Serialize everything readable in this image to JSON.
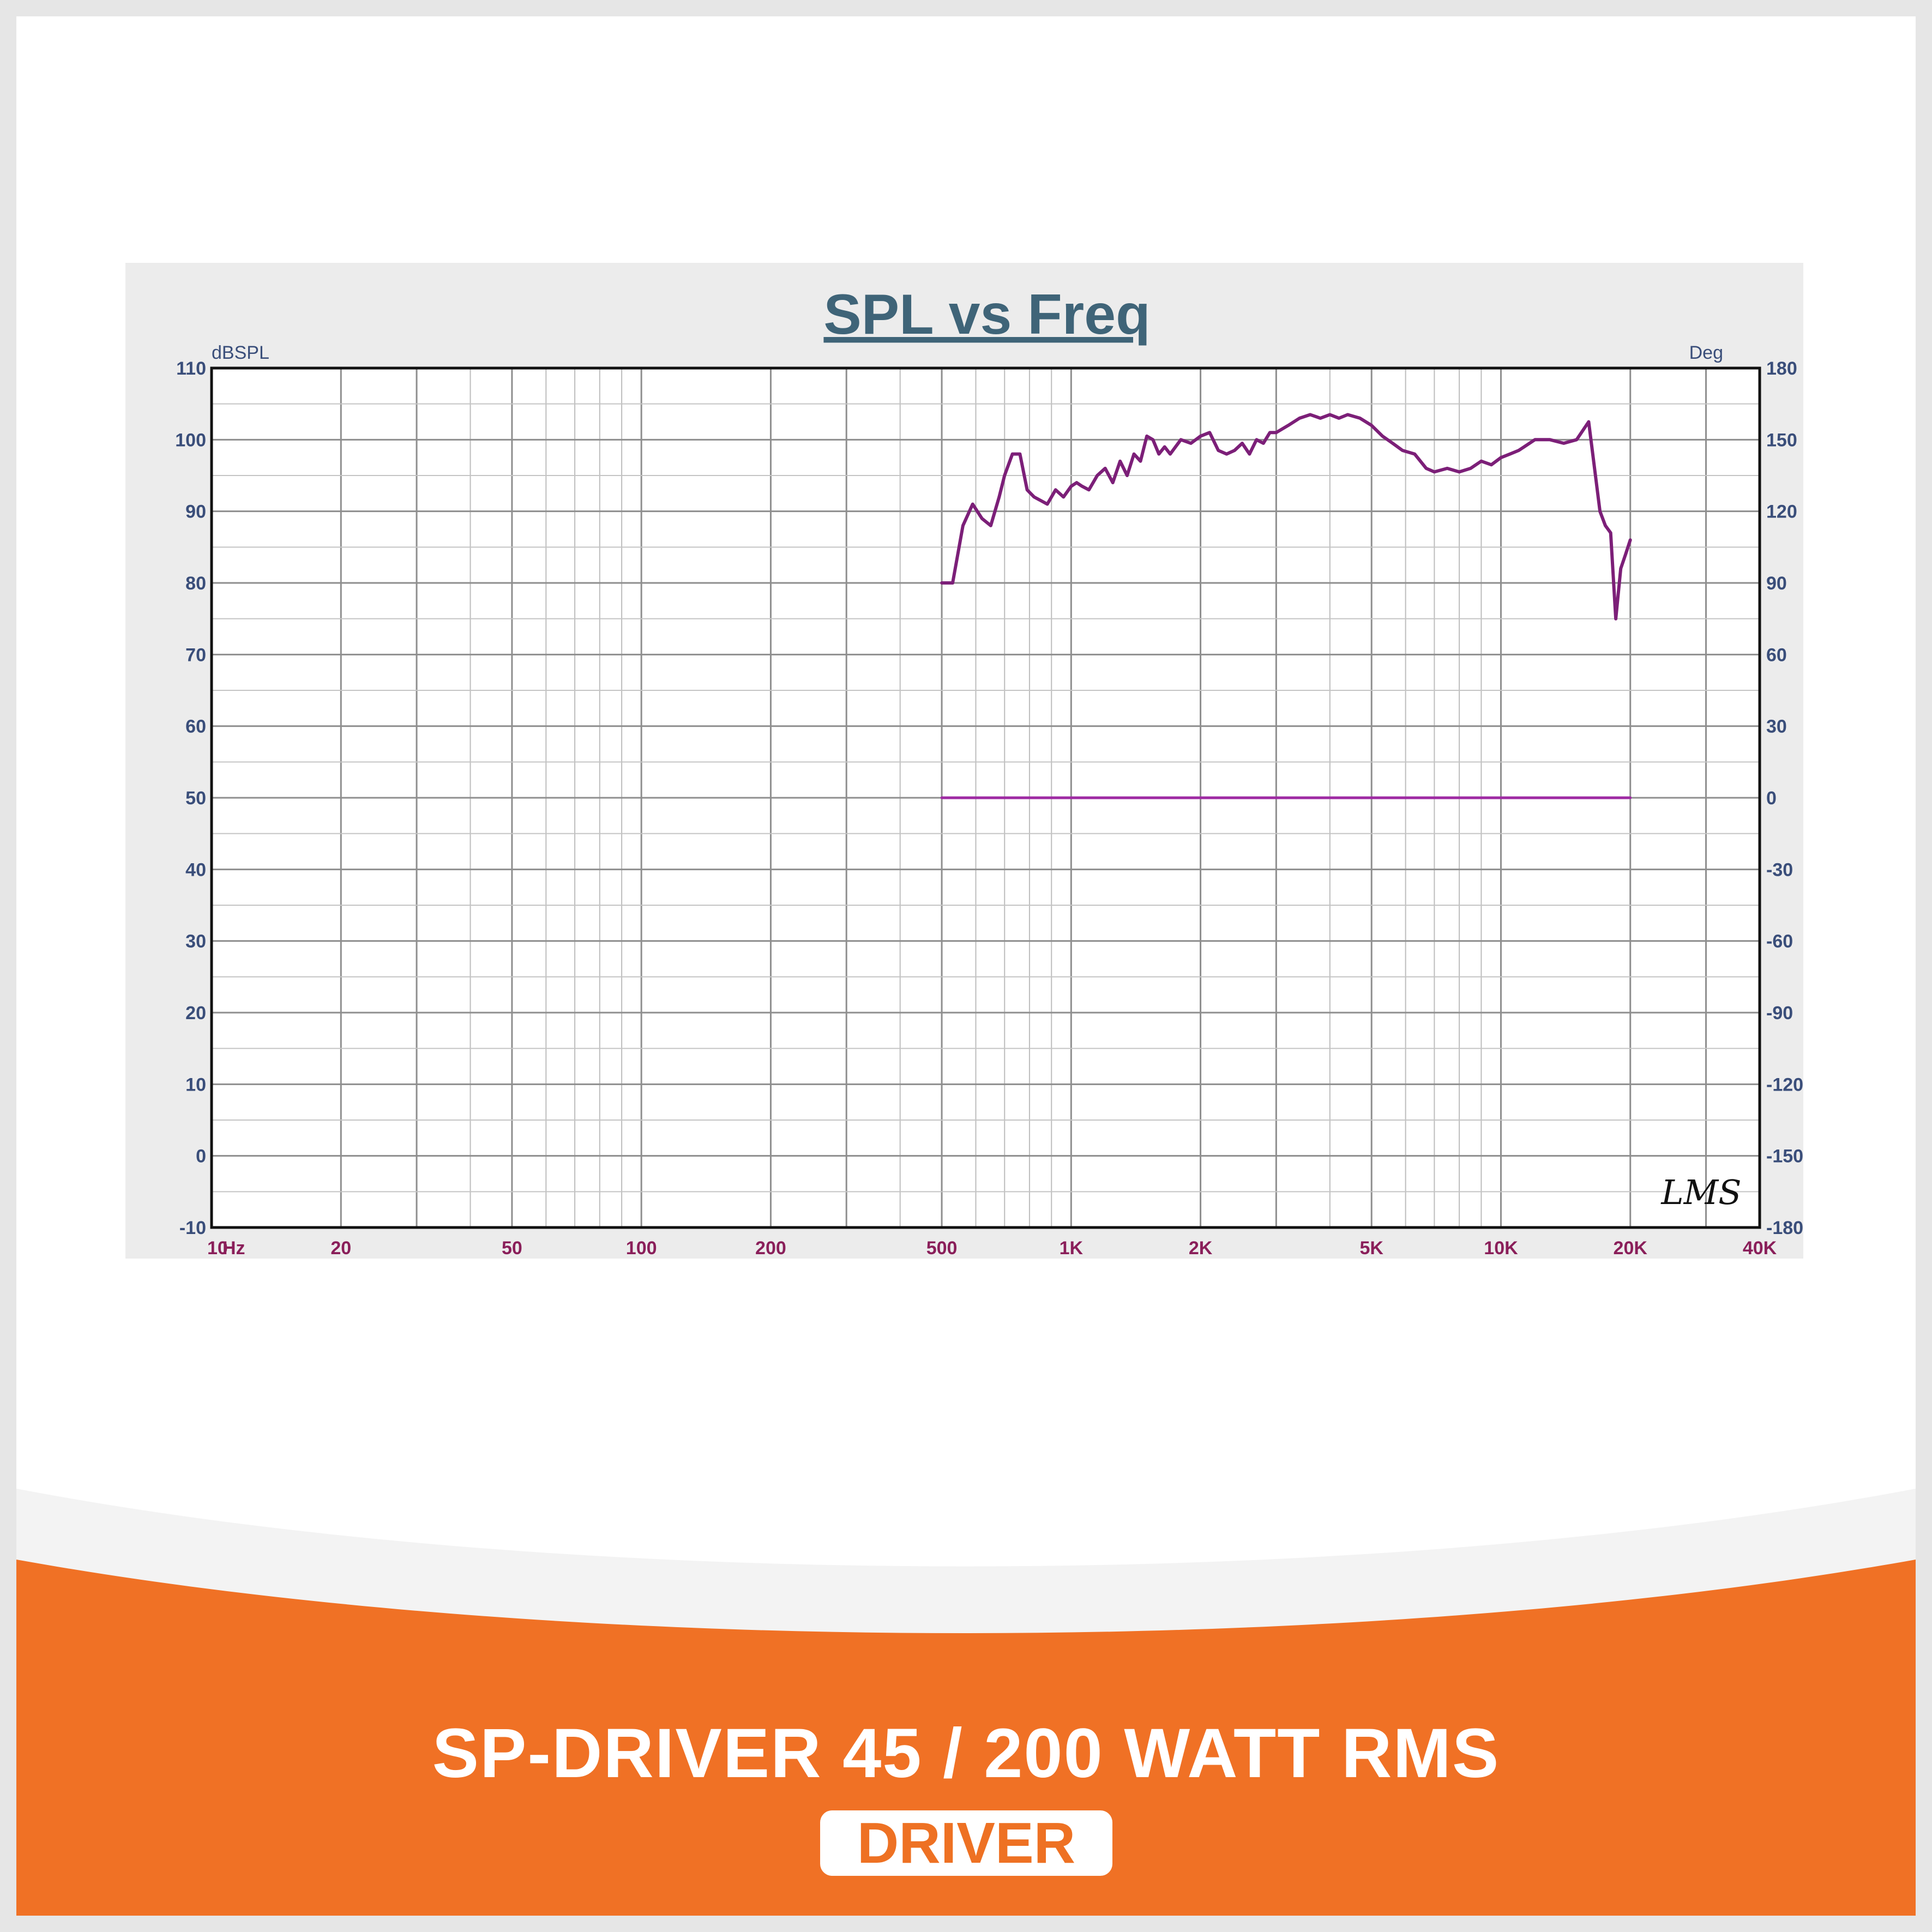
{
  "colors": {
    "accent": "#f07125",
    "curve": "#7c1f78",
    "phase": "#9e2aa3",
    "panel": "#ececec",
    "grid": "#a8a8a8"
  },
  "footer": {
    "product_title": "SP-DRIVER 45 / 200 WATT RMS",
    "category": "DRIVER"
  },
  "watermark": "LMS",
  "chart_data": {
    "type": "line",
    "title": "SPL vs Freq",
    "ylabel": "dBSPL",
    "y2label": "Deg",
    "xunit": "Hz",
    "xscale": "log",
    "xlim": [
      10,
      40000
    ],
    "ylim": [
      -10,
      110
    ],
    "y2lim": [
      -180,
      180
    ],
    "grid": true,
    "x_ticks": [
      {
        "value": 10,
        "label": "10"
      },
      {
        "value": 20,
        "label": "20"
      },
      {
        "value": 50,
        "label": "50"
      },
      {
        "value": 100,
        "label": "100"
      },
      {
        "value": 200,
        "label": "200"
      },
      {
        "value": 500,
        "label": "500"
      },
      {
        "value": 1000,
        "label": "1K"
      },
      {
        "value": 2000,
        "label": "2K"
      },
      {
        "value": 5000,
        "label": "5K"
      },
      {
        "value": 10000,
        "label": "10K"
      },
      {
        "value": 20000,
        "label": "20K"
      },
      {
        "value": 40000,
        "label": "40K"
      }
    ],
    "y_ticks": [
      "110",
      "100",
      "90",
      "80",
      "70",
      "60",
      "50",
      "40",
      "30",
      "20",
      "10",
      "0",
      "-10"
    ],
    "y2_ticks": [
      "180",
      "150",
      "120",
      "90",
      "60",
      "30",
      "0",
      "-30",
      "-60",
      "-90",
      "-120",
      "-150",
      "-180"
    ],
    "series": [
      {
        "axis": "left",
        "x": [
          500,
          530,
          560,
          590,
          620,
          650,
          680,
          700,
          730,
          760,
          790,
          820,
          850,
          880,
          920,
          960,
          1000,
          1030,
          1060,
          1100,
          1150,
          1200,
          1250,
          1300,
          1350,
          1400,
          1450,
          1500,
          1550,
          1600,
          1650,
          1700,
          1800,
          1900,
          2000,
          2100,
          2200,
          2300,
          2400,
          2500,
          2600,
          2700,
          2800,
          2900,
          3000,
          3200,
          3400,
          3600,
          3800,
          4000,
          4200,
          4400,
          4700,
          5000,
          5300,
          5600,
          5900,
          6300,
          6700,
          7000,
          7500,
          8000,
          8500,
          9000,
          9500,
          10000,
          10500,
          11000,
          12000,
          13000,
          14000,
          15000,
          16000,
          17000,
          17500,
          18000,
          18500,
          19000,
          19500,
          20000
        ],
        "y": [
          80,
          80,
          88,
          91,
          89,
          88,
          92,
          95,
          98,
          98,
          93,
          92,
          91.5,
          91,
          93,
          92,
          93.5,
          94,
          93.5,
          93,
          95,
          96,
          94,
          97,
          95,
          98,
          97,
          100.5,
          100,
          98,
          99,
          98,
          100,
          99.5,
          100.5,
          101,
          98.5,
          98,
          98.5,
          99.5,
          98,
          100,
          99.5,
          101,
          101,
          102,
          103,
          103.5,
          103,
          103.5,
          103,
          103.5,
          103,
          102,
          100.5,
          99.5,
          98.5,
          98,
          96,
          95.5,
          96,
          95.5,
          96,
          97,
          96.5,
          97.5,
          98,
          98.5,
          100,
          100,
          99.5,
          100,
          102.5,
          90,
          88,
          87,
          75,
          82,
          84,
          86
        ]
      },
      {
        "axis": "right",
        "x": [
          500,
          20000
        ],
        "y": [
          0,
          0
        ]
      }
    ]
  }
}
